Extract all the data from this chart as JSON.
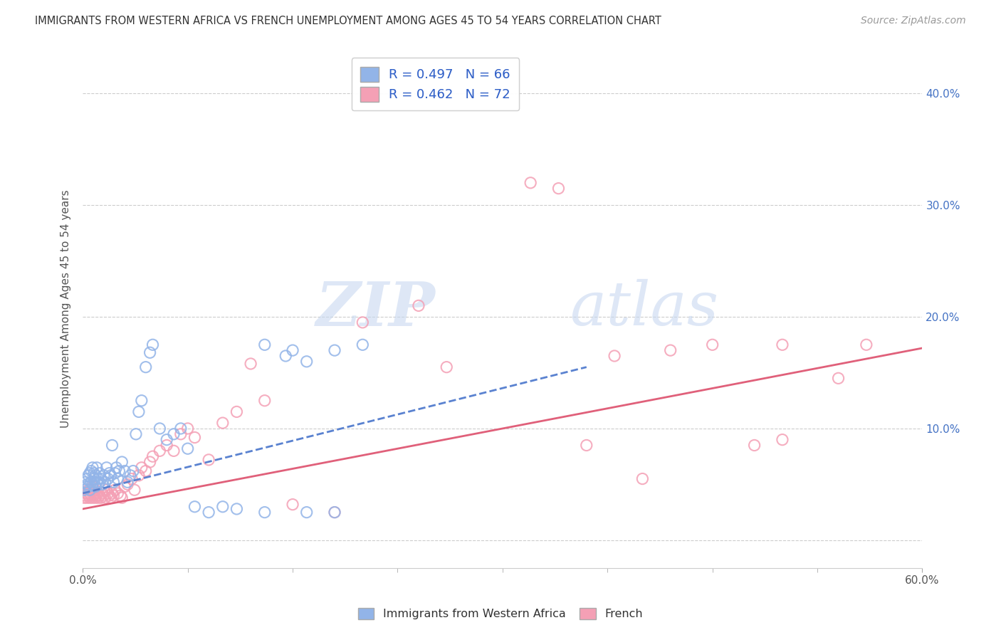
{
  "title": "IMMIGRANTS FROM WESTERN AFRICA VS FRENCH UNEMPLOYMENT AMONG AGES 45 TO 54 YEARS CORRELATION CHART",
  "source": "Source: ZipAtlas.com",
  "ylabel": "Unemployment Among Ages 45 to 54 years",
  "xlim": [
    0.0,
    0.6
  ],
  "ylim": [
    -0.025,
    0.44
  ],
  "blue_color": "#92b4e8",
  "pink_color": "#f4a0b5",
  "blue_line_color": "#5a82d0",
  "pink_line_color": "#e0607a",
  "blue_scatter_x": [
    0.001,
    0.002,
    0.002,
    0.003,
    0.003,
    0.004,
    0.004,
    0.005,
    0.005,
    0.006,
    0.006,
    0.007,
    0.007,
    0.008,
    0.008,
    0.009,
    0.009,
    0.01,
    0.01,
    0.011,
    0.011,
    0.012,
    0.012,
    0.013,
    0.014,
    0.015,
    0.016,
    0.017,
    0.018,
    0.019,
    0.02,
    0.021,
    0.022,
    0.023,
    0.024,
    0.025,
    0.026,
    0.028,
    0.03,
    0.032,
    0.034,
    0.036,
    0.038,
    0.04,
    0.042,
    0.045,
    0.048,
    0.05,
    0.055,
    0.06,
    0.065,
    0.07,
    0.075,
    0.08,
    0.09,
    0.1,
    0.11,
    0.13,
    0.16,
    0.18,
    0.13,
    0.145,
    0.15,
    0.16,
    0.18,
    0.2
  ],
  "blue_scatter_y": [
    0.045,
    0.048,
    0.052,
    0.05,
    0.055,
    0.048,
    0.058,
    0.045,
    0.06,
    0.052,
    0.062,
    0.05,
    0.065,
    0.055,
    0.06,
    0.048,
    0.058,
    0.052,
    0.065,
    0.05,
    0.055,
    0.052,
    0.06,
    0.055,
    0.05,
    0.058,
    0.052,
    0.065,
    0.055,
    0.06,
    0.058,
    0.085,
    0.052,
    0.06,
    0.065,
    0.055,
    0.062,
    0.07,
    0.062,
    0.052,
    0.058,
    0.062,
    0.095,
    0.115,
    0.125,
    0.155,
    0.168,
    0.175,
    0.1,
    0.09,
    0.095,
    0.1,
    0.082,
    0.03,
    0.025,
    0.03,
    0.028,
    0.025,
    0.025,
    0.025,
    0.175,
    0.165,
    0.17,
    0.16,
    0.17,
    0.175
  ],
  "pink_scatter_x": [
    0.001,
    0.002,
    0.002,
    0.003,
    0.003,
    0.004,
    0.004,
    0.005,
    0.005,
    0.006,
    0.006,
    0.007,
    0.007,
    0.008,
    0.008,
    0.009,
    0.009,
    0.01,
    0.01,
    0.011,
    0.012,
    0.013,
    0.014,
    0.015,
    0.016,
    0.017,
    0.018,
    0.019,
    0.02,
    0.021,
    0.022,
    0.023,
    0.025,
    0.027,
    0.028,
    0.03,
    0.032,
    0.035,
    0.037,
    0.04,
    0.042,
    0.045,
    0.048,
    0.05,
    0.055,
    0.06,
    0.065,
    0.07,
    0.075,
    0.08,
    0.09,
    0.1,
    0.11,
    0.12,
    0.13,
    0.15,
    0.18,
    0.2,
    0.24,
    0.26,
    0.32,
    0.34,
    0.36,
    0.38,
    0.42,
    0.45,
    0.48,
    0.5,
    0.54,
    0.56,
    0.4,
    0.5
  ],
  "pink_scatter_y": [
    0.038,
    0.042,
    0.04,
    0.038,
    0.042,
    0.04,
    0.045,
    0.038,
    0.042,
    0.04,
    0.045,
    0.038,
    0.048,
    0.042,
    0.04,
    0.038,
    0.045,
    0.04,
    0.042,
    0.038,
    0.04,
    0.038,
    0.042,
    0.04,
    0.038,
    0.045,
    0.042,
    0.04,
    0.038,
    0.042,
    0.04,
    0.045,
    0.042,
    0.04,
    0.038,
    0.048,
    0.05,
    0.055,
    0.045,
    0.058,
    0.065,
    0.062,
    0.07,
    0.075,
    0.08,
    0.085,
    0.08,
    0.095,
    0.1,
    0.092,
    0.072,
    0.105,
    0.115,
    0.158,
    0.125,
    0.032,
    0.025,
    0.195,
    0.21,
    0.155,
    0.32,
    0.315,
    0.085,
    0.165,
    0.17,
    0.175,
    0.085,
    0.175,
    0.145,
    0.175,
    0.055,
    0.09
  ],
  "blue_trend_x": [
    0.0,
    0.36
  ],
  "blue_trend_y": [
    0.042,
    0.155
  ],
  "pink_trend_x": [
    0.0,
    0.6
  ],
  "pink_trend_y": [
    0.028,
    0.172
  ],
  "xtick_positions": [
    0.0,
    0.6
  ],
  "xtick_labels": [
    "0.0%",
    "60.0%"
  ],
  "ytick_positions": [
    0.0,
    0.1,
    0.2,
    0.3,
    0.4
  ],
  "ytick_labels_left": [
    "",
    "",
    "",
    "",
    ""
  ],
  "ytick_labels_right": [
    "",
    "10.0%",
    "20.0%",
    "30.0%",
    "40.0%"
  ],
  "watermark_zip": "ZIP",
  "watermark_atlas": "atlas",
  "legend_items": [
    {
      "label": "Immigrants from Western Africa",
      "color": "#92b4e8"
    },
    {
      "label": "French",
      "color": "#f4a0b5"
    }
  ]
}
